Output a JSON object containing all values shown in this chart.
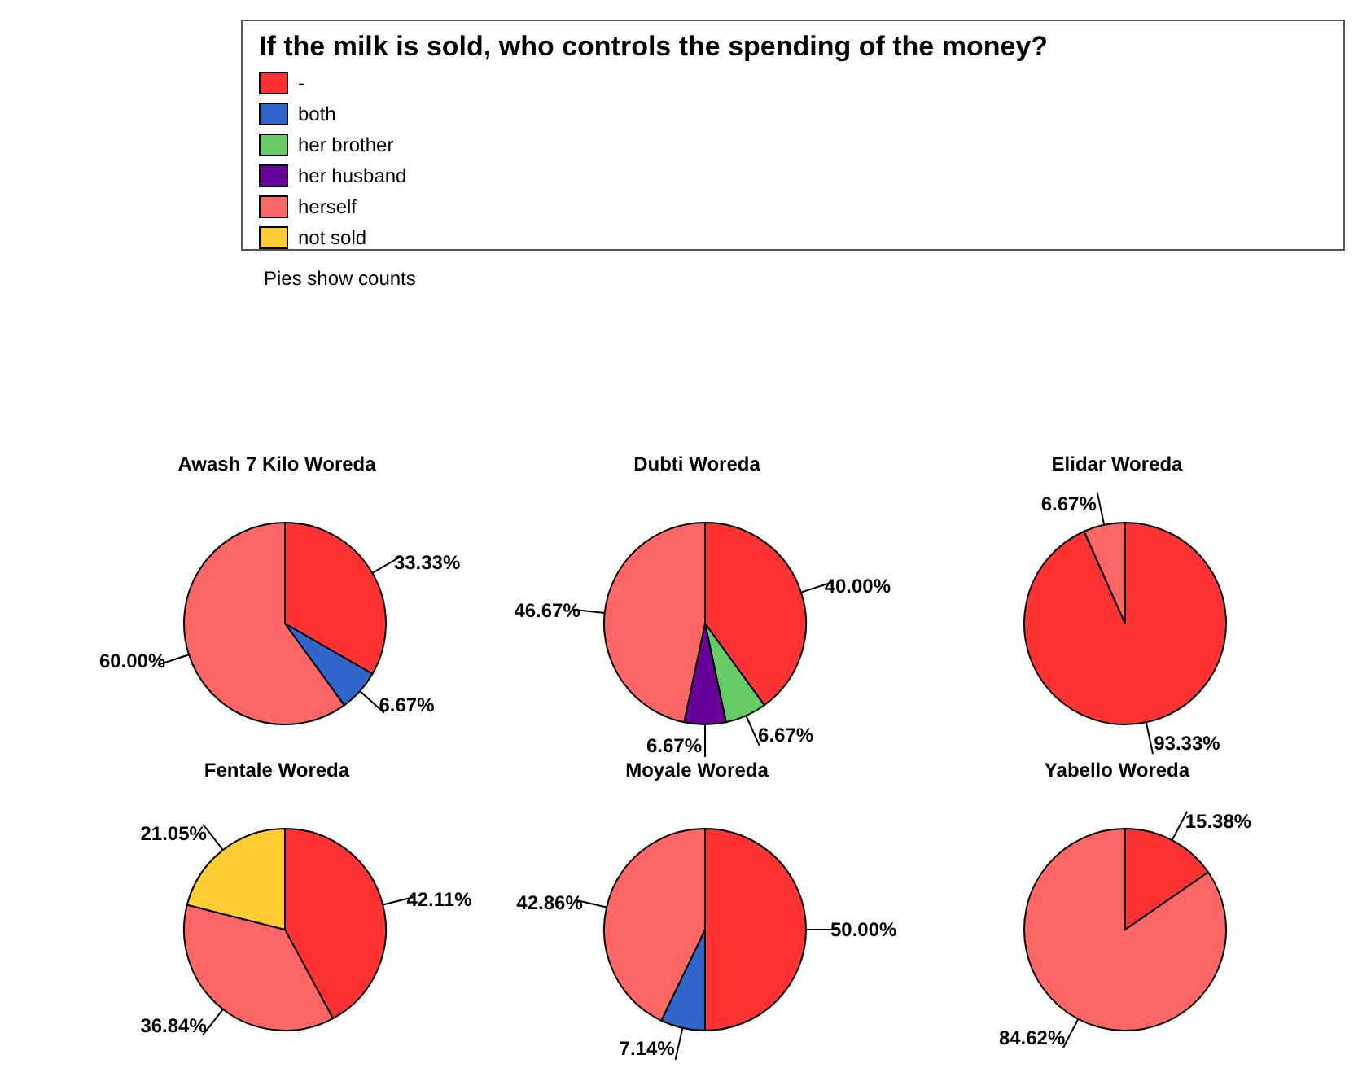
{
  "chart_data": [
    {
      "type": "other",
      "title": "If the milk is sold, who controls the spending of the money?",
      "categories": [
        "-",
        "both",
        "her brother",
        "her husband",
        "herself",
        "not sold"
      ],
      "colors": [
        "#ff3333",
        "#3366cc",
        "#66cc66",
        "#660099",
        "#ff6666",
        "#ffcc33"
      ],
      "annotations": [
        "Pies show counts"
      ]
    },
    {
      "type": "pie",
      "title": "Awash 7 Kilo Woreda",
      "categories": [
        null,
        null,
        null
      ],
      "values": [
        33.33,
        6.67,
        60
      ],
      "value_labels": [
        "33.33%",
        "6.67%",
        "60.00%"
      ],
      "colors": [
        "#ff3333",
        "#3366cc",
        "#ff6666"
      ]
    },
    {
      "type": "pie",
      "title": "Dubti Woreda",
      "categories": [
        null,
        null,
        null,
        null
      ],
      "values": [
        40,
        6.67,
        6.67,
        46.67
      ],
      "value_labels": [
        "40.00%",
        "6.67%",
        "6.67%",
        "46.67%"
      ],
      "colors": [
        "#ff3333",
        "#66cc66",
        "#660099",
        "#ff6666"
      ]
    },
    {
      "type": "pie",
      "title": "Elidar Woreda",
      "categories": [
        null,
        null
      ],
      "values": [
        93.33,
        6.67
      ],
      "value_labels": [
        "93.33%",
        "6.67%"
      ],
      "colors": [
        "#ff3333",
        "#ff6666"
      ]
    },
    {
      "type": "pie",
      "title": "Fentale Woreda",
      "categories": [
        null,
        null,
        null
      ],
      "values": [
        42.11,
        36.84,
        21.05
      ],
      "value_labels": [
        "42.11%",
        "36.84%",
        "21.05%"
      ],
      "colors": [
        "#ff3333",
        "#ff6666",
        "#ffcc33"
      ]
    },
    {
      "type": "pie",
      "title": "Moyale Woreda",
      "categories": [
        null,
        null,
        null
      ],
      "values": [
        50,
        7.14,
        42.86
      ],
      "value_labels": [
        "50.00%",
        "7.14%",
        "42.86%"
      ],
      "colors": [
        "#ff3333",
        "#3366cc",
        "#ff6666"
      ]
    },
    {
      "type": "pie",
      "title": "Yabello Woreda",
      "categories": [
        null,
        null
      ],
      "values": [
        15.38,
        84.62
      ],
      "value_labels": [
        "15.38%",
        "84.62%"
      ],
      "colors": [
        "#ff3333",
        "#ff6666"
      ]
    }
  ]
}
